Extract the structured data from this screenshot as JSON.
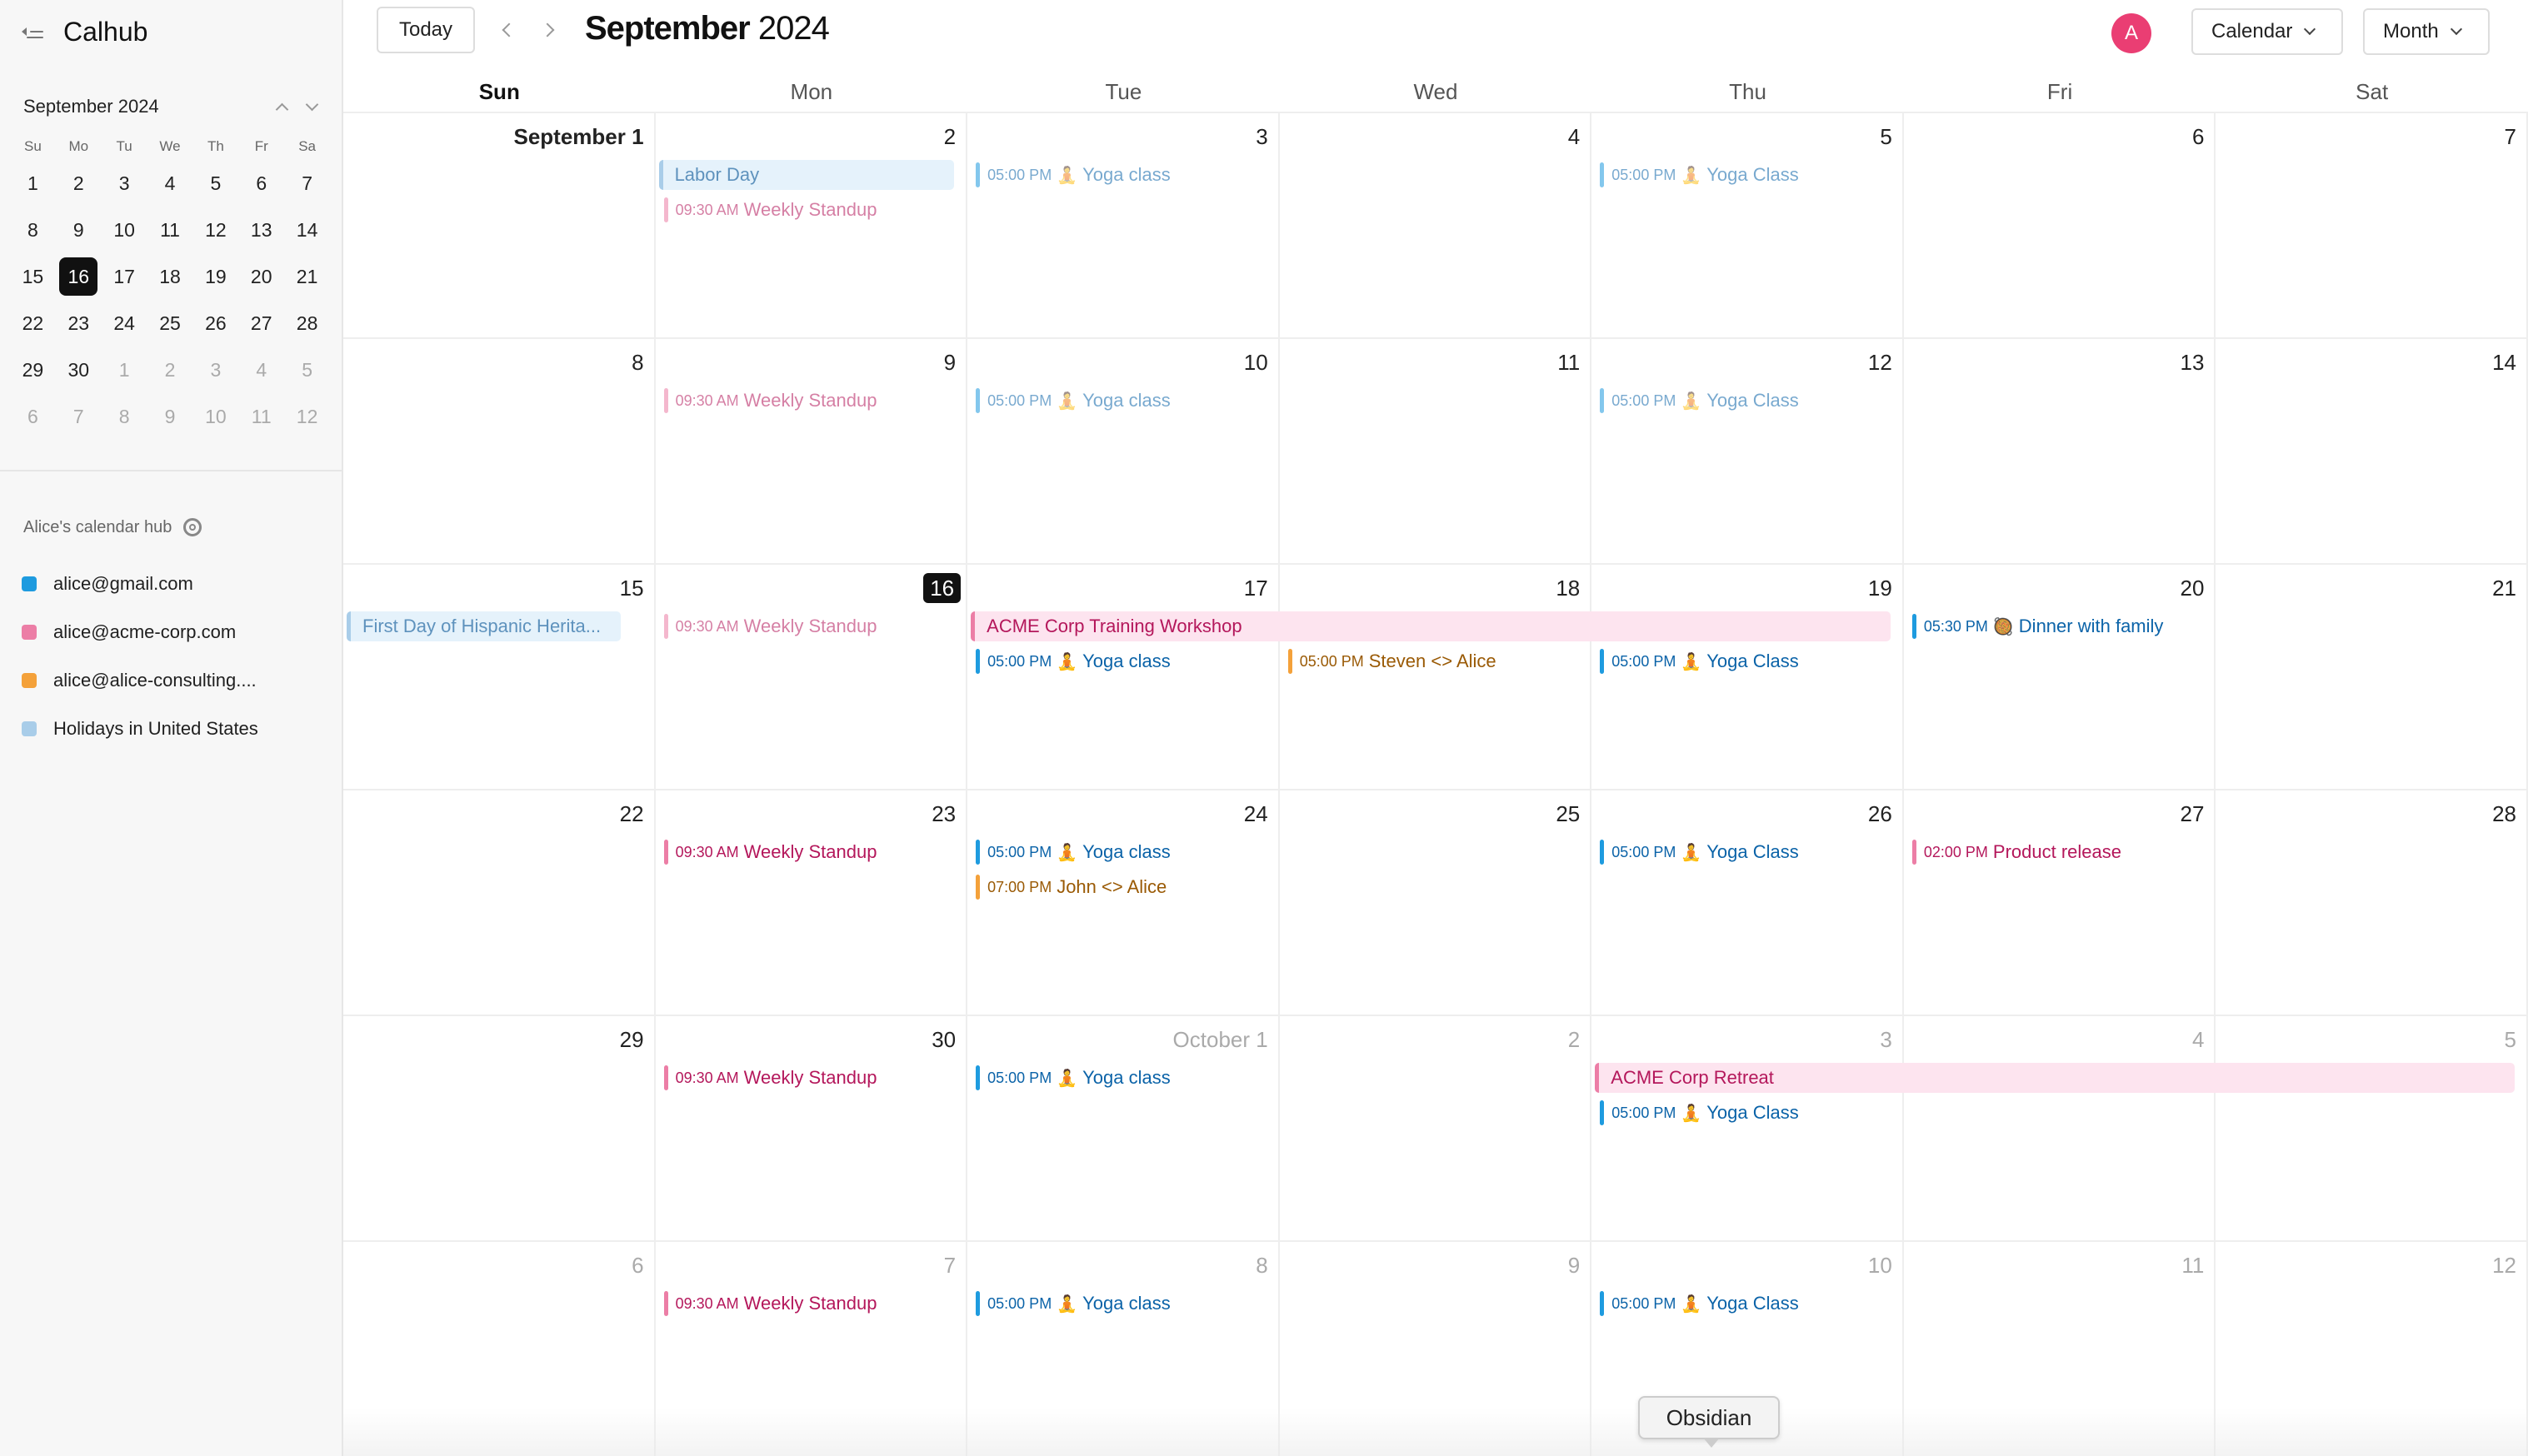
{
  "app": {
    "title": "Calhub"
  },
  "mini_calendar": {
    "title": "September 2024",
    "dows": [
      "Su",
      "Mo",
      "Tu",
      "We",
      "Th",
      "Fr",
      "Sa"
    ],
    "weeks": [
      [
        {
          "d": "1"
        },
        {
          "d": "2"
        },
        {
          "d": "3"
        },
        {
          "d": "4"
        },
        {
          "d": "5"
        },
        {
          "d": "6"
        },
        {
          "d": "7"
        }
      ],
      [
        {
          "d": "8"
        },
        {
          "d": "9"
        },
        {
          "d": "10"
        },
        {
          "d": "11"
        },
        {
          "d": "12"
        },
        {
          "d": "13"
        },
        {
          "d": "14"
        }
      ],
      [
        {
          "d": "15"
        },
        {
          "d": "16",
          "today": true
        },
        {
          "d": "17"
        },
        {
          "d": "18"
        },
        {
          "d": "19"
        },
        {
          "d": "20"
        },
        {
          "d": "21"
        }
      ],
      [
        {
          "d": "22"
        },
        {
          "d": "23"
        },
        {
          "d": "24"
        },
        {
          "d": "25"
        },
        {
          "d": "26"
        },
        {
          "d": "27"
        },
        {
          "d": "28"
        }
      ],
      [
        {
          "d": "29"
        },
        {
          "d": "30"
        },
        {
          "d": "1",
          "other": true
        },
        {
          "d": "2",
          "other": true
        },
        {
          "d": "3",
          "other": true
        },
        {
          "d": "4",
          "other": true
        },
        {
          "d": "5",
          "other": true
        }
      ],
      [
        {
          "d": "6",
          "other": true
        },
        {
          "d": "7",
          "other": true
        },
        {
          "d": "8",
          "other": true
        },
        {
          "d": "9",
          "other": true
        },
        {
          "d": "10",
          "other": true
        },
        {
          "d": "11",
          "other": true
        },
        {
          "d": "12",
          "other": true
        }
      ]
    ]
  },
  "hub": {
    "title": "Alice's calendar hub",
    "calendars": [
      {
        "name": "alice@gmail.com",
        "color": "#1e9bdf"
      },
      {
        "name": "alice@acme-corp.com",
        "color": "#ec7ea6"
      },
      {
        "name": "alice@alice-consulting....",
        "color": "#f4a13a"
      },
      {
        "name": "Holidays in United States",
        "color": "#a9cde9"
      }
    ]
  },
  "toolbar": {
    "today_label": "Today",
    "month_bold": "September",
    "year": " 2024",
    "avatar_letter": "A",
    "calendar_label": "Calendar",
    "view_label": "Month"
  },
  "dows": [
    "Sun",
    "Mon",
    "Tue",
    "Wed",
    "Thu",
    "Fri",
    "Sat"
  ],
  "weeks": [
    [
      "September 1",
      "2",
      "3",
      "4",
      "5",
      "6",
      "7"
    ],
    [
      "8",
      "9",
      "10",
      "11",
      "12",
      "13",
      "14"
    ],
    [
      "15",
      "16",
      "17",
      "18",
      "19",
      "20",
      "21"
    ],
    [
      "22",
      "23",
      "24",
      "25",
      "26",
      "27",
      "28"
    ],
    [
      "29",
      "30",
      "October 1",
      "2",
      "3",
      "4",
      "5"
    ],
    [
      "6",
      "7",
      "8",
      "9",
      "10",
      "11",
      "12"
    ]
  ],
  "today": {
    "week": 2,
    "day": 1
  },
  "events": [
    {
      "week": 0,
      "day": 1,
      "slot": 0,
      "span": 1,
      "allday": true,
      "style": "bluebg",
      "title": "Labor Day",
      "faded": false
    },
    {
      "week": 0,
      "day": 1,
      "slot": 1,
      "color": "pink",
      "time": "09:30 AM",
      "title": "Weekly Standup",
      "faded": true
    },
    {
      "week": 0,
      "day": 2,
      "slot": 0,
      "color": "blue",
      "time": "05:00 PM",
      "emoji": "🧘",
      "title": "Yoga class",
      "faded": true
    },
    {
      "week": 0,
      "day": 4,
      "slot": 0,
      "color": "blue",
      "time": "05:00 PM",
      "emoji": "🧘",
      "title": "Yoga Class",
      "faded": true
    },
    {
      "week": 1,
      "day": 1,
      "slot": 0,
      "color": "pink",
      "time": "09:30 AM",
      "title": "Weekly Standup",
      "faded": true
    },
    {
      "week": 1,
      "day": 2,
      "slot": 0,
      "color": "blue",
      "time": "05:00 PM",
      "emoji": "🧘",
      "title": "Yoga class",
      "faded": true
    },
    {
      "week": 1,
      "day": 4,
      "slot": 0,
      "color": "blue",
      "time": "05:00 PM",
      "emoji": "🧘",
      "title": "Yoga Class",
      "faded": true
    },
    {
      "week": 2,
      "day": 0,
      "slot": 0,
      "span": 1,
      "allday": true,
      "style": "bluebg",
      "title": "First Day of Hispanic Herita...",
      "faded": false
    },
    {
      "week": 2,
      "day": 1,
      "slot": 0,
      "color": "pink",
      "time": "09:30 AM",
      "title": "Weekly Standup",
      "faded": true
    },
    {
      "week": 2,
      "day": 2,
      "slot": 0,
      "span": 3,
      "allday": true,
      "style": "pinkbg",
      "title": "ACME Corp Training Workshop",
      "faded": false
    },
    {
      "week": 2,
      "day": 2,
      "slot": 1,
      "color": "blue",
      "time": "05:00 PM",
      "emoji": "🧘",
      "title": "Yoga class",
      "faded": false
    },
    {
      "week": 2,
      "day": 3,
      "slot": 1,
      "color": "orange",
      "time": "05:00 PM",
      "title": "Steven <> Alice",
      "faded": false
    },
    {
      "week": 2,
      "day": 4,
      "slot": 1,
      "color": "blue",
      "time": "05:00 PM",
      "emoji": "🧘",
      "title": "Yoga Class",
      "faded": false
    },
    {
      "week": 2,
      "day": 5,
      "slot": 0,
      "color": "blue",
      "time": "05:30 PM",
      "emoji": "🥘",
      "title": "Dinner with family",
      "faded": false
    },
    {
      "week": 3,
      "day": 1,
      "slot": 0,
      "color": "pink",
      "time": "09:30 AM",
      "title": "Weekly Standup",
      "faded": false
    },
    {
      "week": 3,
      "day": 2,
      "slot": 0,
      "color": "blue",
      "time": "05:00 PM",
      "emoji": "🧘",
      "title": "Yoga class",
      "faded": false
    },
    {
      "week": 3,
      "day": 2,
      "slot": 1,
      "color": "orange",
      "time": "07:00 PM",
      "title": "John <> Alice",
      "faded": false
    },
    {
      "week": 3,
      "day": 4,
      "slot": 0,
      "color": "blue",
      "time": "05:00 PM",
      "emoji": "🧘",
      "title": "Yoga Class",
      "faded": false
    },
    {
      "week": 3,
      "day": 5,
      "slot": 0,
      "color": "pink",
      "time": "02:00 PM",
      "title": "Product release",
      "faded": false
    },
    {
      "week": 4,
      "day": 1,
      "slot": 0,
      "color": "pink",
      "time": "09:30 AM",
      "title": "Weekly Standup",
      "faded": false
    },
    {
      "week": 4,
      "day": 2,
      "slot": 0,
      "color": "blue",
      "time": "05:00 PM",
      "emoji": "🧘",
      "title": "Yoga class",
      "faded": false
    },
    {
      "week": 4,
      "day": 4,
      "slot": 0,
      "span": 3,
      "allday": true,
      "style": "pinkbg",
      "title": "ACME Corp Retreat",
      "faded": false
    },
    {
      "week": 4,
      "day": 4,
      "slot": 1,
      "color": "blue",
      "time": "05:00 PM",
      "emoji": "🧘",
      "title": "Yoga Class",
      "faded": false
    },
    {
      "week": 5,
      "day": 1,
      "slot": 0,
      "color": "pink",
      "time": "09:30 AM",
      "title": "Weekly Standup",
      "faded": false
    },
    {
      "week": 5,
      "day": 2,
      "slot": 0,
      "color": "blue",
      "time": "05:00 PM",
      "emoji": "🧘",
      "title": "Yoga class",
      "faded": false
    },
    {
      "week": 5,
      "day": 4,
      "slot": 0,
      "color": "blue",
      "time": "05:00 PM",
      "emoji": "🧘",
      "title": "Yoga Class",
      "faded": false
    }
  ],
  "tooltip": {
    "text": "Obsidian"
  }
}
